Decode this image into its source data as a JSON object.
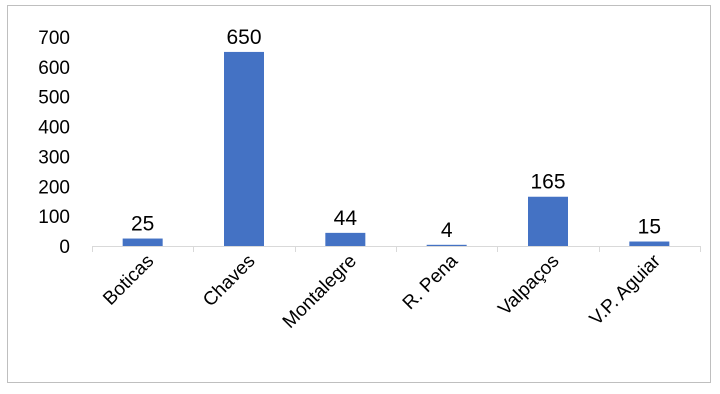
{
  "chart_data": {
    "type": "bar",
    "title": "",
    "xlabel": "",
    "ylabel": "",
    "categories": [
      "Boticas",
      "Chaves",
      "Montalegre",
      "R. Pena",
      "Valpaços",
      "V.P. Aguiar"
    ],
    "values": [
      25,
      650,
      44,
      4,
      165,
      15
    ],
    "data_labels": [
      "25",
      "650",
      "44",
      "4",
      "165",
      "15"
    ],
    "ylim": [
      0,
      700
    ],
    "yticks": [
      "0",
      "100",
      "200",
      "300",
      "400",
      "500",
      "600",
      "700"
    ],
    "grid": false,
    "legend": "none",
    "bar_color": "#4472C4",
    "axis_color": "#D9D9D9",
    "border_color": "#BFBFBF"
  }
}
